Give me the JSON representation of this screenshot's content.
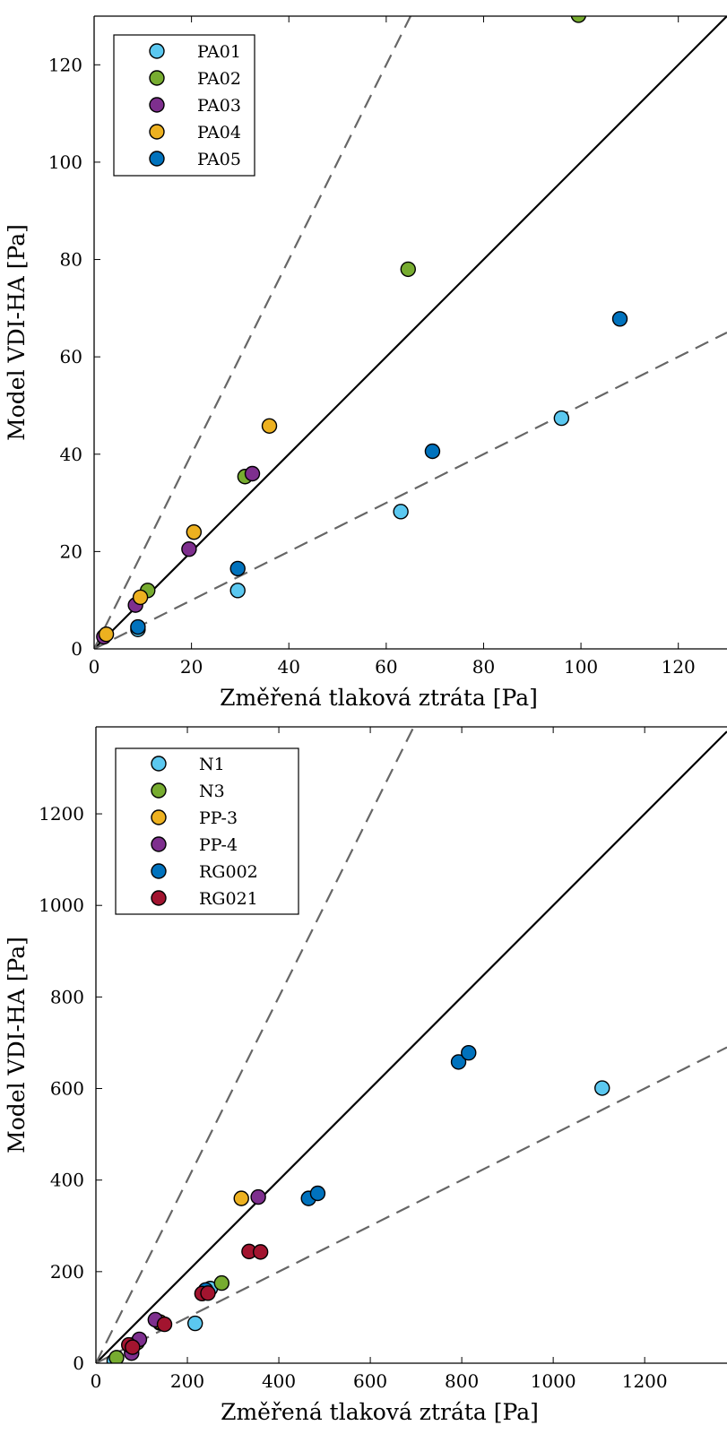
{
  "chart_data": [
    {
      "type": "scatter",
      "xlabel": "Změřená tlaková ztráta [Pa]",
      "ylabel": "Model VDI-HA [Pa]",
      "xlim": [
        0,
        130
      ],
      "ylim": [
        0,
        130
      ],
      "xticks": [
        "0",
        "20",
        "40",
        "60",
        "80",
        "100",
        "120"
      ],
      "yticks": [
        "0",
        "20",
        "40",
        "60",
        "80",
        "100",
        "120"
      ],
      "legend_position": "top-left",
      "reference_lines": [
        {
          "style": "solid",
          "slope": 1
        },
        {
          "style": "dashed",
          "slope": 2
        },
        {
          "style": "dashed",
          "slope": 0.5
        }
      ],
      "series": [
        {
          "name": "PA01",
          "color": "#5bc8f0",
          "points": [
            [
              9,
              4
            ],
            [
              29.5,
              12
            ],
            [
              63,
              28.2
            ],
            [
              96,
              47.4
            ]
          ]
        },
        {
          "name": "PA02",
          "color": "#77ac30",
          "points": [
            [
              11,
              12
            ],
            [
              31,
              35.4
            ],
            [
              64.5,
              78
            ],
            [
              99.5,
              130.2
            ]
          ]
        },
        {
          "name": "PA03",
          "color": "#7e2f8e",
          "points": [
            [
              2,
              2.5
            ],
            [
              8.5,
              9
            ],
            [
              19.5,
              20.5
            ],
            [
              32.5,
              36
            ]
          ]
        },
        {
          "name": "PA04",
          "color": "#edb120",
          "points": [
            [
              2.5,
              3
            ],
            [
              9.5,
              10.6
            ],
            [
              20.5,
              24
            ],
            [
              36,
              45.8
            ]
          ]
        },
        {
          "name": "PA05",
          "color": "#0072bd",
          "points": [
            [
              9,
              4.5
            ],
            [
              29.5,
              16.5
            ],
            [
              69.5,
              40.6
            ],
            [
              108,
              67.8
            ]
          ]
        }
      ]
    },
    {
      "type": "scatter",
      "xlabel": "Změřená tlaková ztráta [Pa]",
      "ylabel": "Model VDI-HA [Pa]",
      "xlim": [
        0,
        1380
      ],
      "ylim": [
        0,
        1390
      ],
      "xticks": [
        "0",
        "200",
        "400",
        "600",
        "800",
        "1000",
        "1200"
      ],
      "yticks": [
        "0",
        "200",
        "400",
        "600",
        "800",
        "1000",
        "1200"
      ],
      "legend_position": "top-left",
      "reference_lines": [
        {
          "style": "solid",
          "slope": 1
        },
        {
          "style": "dashed",
          "slope": 2
        },
        {
          "style": "dashed",
          "slope": 0.5
        }
      ],
      "series": [
        {
          "name": "N1",
          "color": "#5bc8f0",
          "points": [
            [
              40,
              5
            ],
            [
              217,
              87
            ],
            [
              250,
              163
            ],
            [
              1107,
              601
            ]
          ]
        },
        {
          "name": "N3",
          "color": "#77ac30",
          "points": [
            [
              45,
              12
            ],
            [
              90,
              45
            ],
            [
              140,
              88
            ],
            [
              275,
              175
            ]
          ]
        },
        {
          "name": "PP-3",
          "color": "#edb120",
          "points": [
            [
              318,
              360
            ],
            [
              140,
              90
            ]
          ]
        },
        {
          "name": "PP-4",
          "color": "#7e2f8e",
          "points": [
            [
              78,
              22
            ],
            [
              95,
              52
            ],
            [
              130,
              95
            ],
            [
              355,
              363
            ]
          ]
        },
        {
          "name": "RG002",
          "color": "#0072bd",
          "points": [
            [
              240,
              160
            ],
            [
              465,
              360
            ],
            [
              485,
              371
            ],
            [
              793,
              658
            ],
            [
              815,
              678
            ]
          ]
        },
        {
          "name": "RG021",
          "color": "#a2142f",
          "points": [
            [
              72,
              40
            ],
            [
              80,
              35
            ],
            [
              150,
              85
            ],
            [
              232,
              152
            ],
            [
              245,
              153
            ],
            [
              335,
              244
            ],
            [
              360,
              243
            ]
          ]
        }
      ]
    }
  ]
}
